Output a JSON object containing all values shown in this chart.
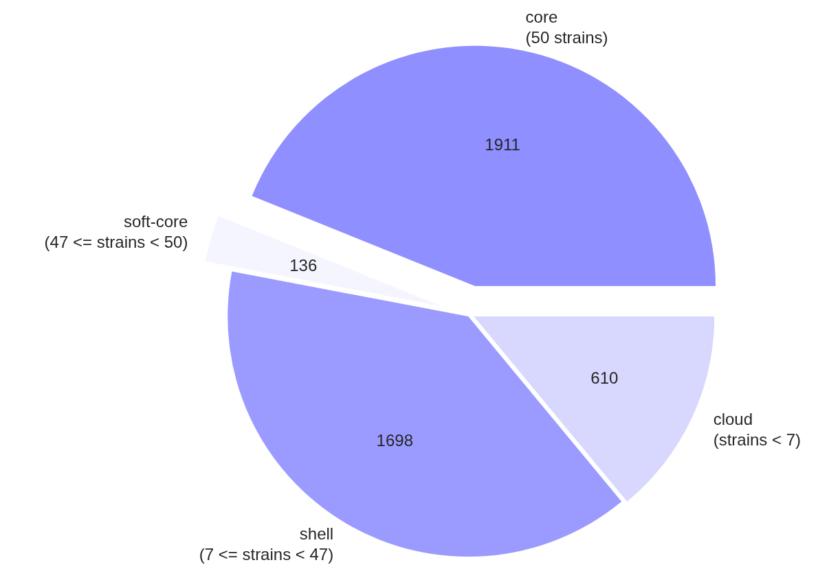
{
  "chart_data": {
    "type": "pie",
    "categories": [
      "core\n(50 strains)",
      "soft-core\n(47 <= strains < 50)",
      "shell\n(7 <= strains < 47)",
      "cloud\n(strains < 7)"
    ],
    "values": [
      1911,
      136,
      1698,
      610
    ],
    "colors": [
      "#8f8fff",
      "#f5f5ff",
      "#9b9bff",
      "#d8d8ff"
    ],
    "data_labels": true
  }
}
